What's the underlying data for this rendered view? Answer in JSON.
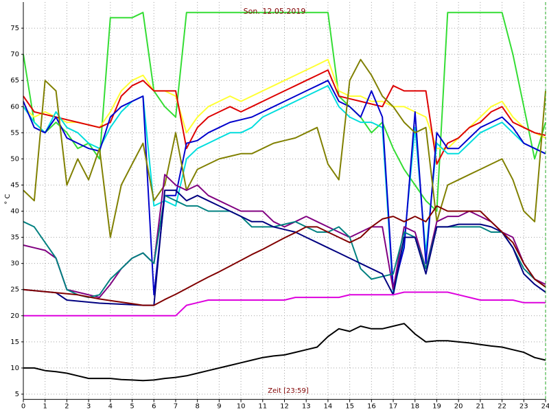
{
  "chart_data": {
    "type": "line",
    "title": "Son. 12.05.2019",
    "x_label": "Zeit [23:59]",
    "y_label": "° C",
    "xlim": [
      0,
      24
    ],
    "ylim": [
      4,
      80
    ],
    "xticks": [
      0,
      1,
      2,
      3,
      4,
      5,
      6,
      7,
      8,
      9,
      10,
      11,
      12,
      13,
      14,
      15,
      16,
      17,
      18,
      19,
      20,
      21,
      22,
      23,
      24
    ],
    "yticks": [
      5,
      10,
      15,
      20,
      25,
      30,
      35,
      40,
      45,
      50,
      55,
      60,
      65,
      70,
      75
    ],
    "grid": true,
    "x": [
      0,
      0.5,
      1,
      1.5,
      2,
      2.5,
      3,
      3.5,
      4,
      4.5,
      5,
      5.5,
      6,
      6.5,
      7,
      7.5,
      8,
      8.5,
      9,
      9.5,
      10,
      10.5,
      11,
      11.5,
      12,
      12.5,
      13,
      13.5,
      14,
      14.5,
      15,
      15.5,
      16,
      16.5,
      17,
      17.5,
      18,
      18.5,
      19,
      19.5,
      20,
      20.5,
      21,
      21.5,
      22,
      22.5,
      23,
      23.5,
      24
    ],
    "series": [
      {
        "color": "#33dd33",
        "values": [
          70,
          57,
          55,
          57,
          55,
          52,
          53,
          50,
          77,
          77,
          77,
          78,
          63,
          60,
          58,
          78,
          78,
          78,
          78,
          78,
          78,
          78,
          78,
          78,
          78,
          78,
          78,
          78,
          78,
          62,
          60,
          58,
          55,
          57,
          52,
          48,
          45,
          42,
          40,
          78,
          78,
          78,
          78,
          78,
          78,
          70,
          60,
          50,
          57
        ]
      },
      {
        "color": "#ffff33",
        "values": [
          60,
          58,
          59,
          58,
          57,
          57,
          56.5,
          56,
          59,
          63,
          65,
          66,
          63,
          63,
          62,
          55,
          58,
          60,
          61,
          62,
          61,
          62,
          63,
          64,
          65,
          66,
          67,
          68,
          69,
          63,
          62,
          62,
          61,
          61,
          60,
          60,
          59,
          58,
          52,
          52,
          54,
          56,
          58,
          60,
          61,
          58,
          56,
          55,
          54
        ]
      },
      {
        "color": "#dd0000",
        "values": [
          62,
          59,
          58.5,
          58,
          57.5,
          57,
          56.5,
          56,
          57,
          62,
          64,
          65,
          63,
          63,
          63,
          52,
          56,
          58,
          59,
          60,
          59,
          60,
          61,
          62,
          63,
          64,
          65,
          66,
          67,
          62,
          61.5,
          61,
          60.5,
          60,
          64,
          63,
          63,
          63,
          49,
          53,
          54,
          56,
          57,
          59,
          60,
          57,
          56,
          55,
          54.5
        ]
      },
      {
        "color": "#00dddd",
        "values": [
          60,
          57,
          55,
          59,
          56,
          55,
          53,
          52,
          56,
          59,
          61,
          62,
          41,
          42,
          41,
          50,
          52,
          53,
          54,
          55,
          55,
          56,
          58,
          59,
          60,
          61,
          62,
          63,
          64,
          60,
          58,
          57,
          57,
          56,
          24,
          34,
          56,
          32,
          53,
          51,
          51,
          53,
          55,
          56,
          57,
          55,
          53,
          52,
          51
        ]
      },
      {
        "color": "#0000cc",
        "values": [
          61,
          56,
          55,
          58,
          54,
          53,
          52,
          51.5,
          58,
          60,
          61,
          62,
          24,
          43,
          43,
          53,
          53.5,
          55,
          56,
          57,
          57.5,
          58,
          59,
          60,
          61,
          62,
          63,
          64,
          65,
          61,
          60,
          58,
          63,
          58,
          25,
          33,
          59,
          30,
          55,
          52,
          52,
          54,
          56,
          57,
          58,
          56,
          53,
          52,
          51
        ]
      },
      {
        "color": "#808000",
        "values": [
          44,
          42,
          65,
          63,
          45,
          50,
          46,
          52,
          35,
          45,
          49,
          53,
          42,
          45,
          55,
          44,
          48,
          49,
          50,
          50.5,
          51,
          51,
          52,
          53,
          53.5,
          54,
          55,
          56,
          49,
          46,
          65,
          69,
          66,
          62,
          60,
          57,
          55,
          56,
          38,
          45,
          46,
          47,
          48,
          49,
          50,
          46,
          40,
          38,
          63
        ]
      },
      {
        "color": "#800080",
        "values": [
          33.5,
          33,
          32.5,
          31,
          25,
          24.5,
          24,
          23.5,
          26,
          29,
          31,
          32,
          30,
          47,
          45,
          44,
          45,
          43,
          42,
          41,
          40,
          40,
          40,
          38,
          37,
          38,
          39,
          38,
          37,
          36,
          35,
          36,
          37,
          37,
          25,
          37,
          36,
          29,
          38,
          39,
          39,
          40,
          39,
          38,
          36,
          35,
          30,
          27,
          26
        ]
      },
      {
        "color": "#008080",
        "values": [
          38,
          37,
          34,
          31,
          25,
          24,
          23.5,
          24,
          27,
          29,
          31,
          32,
          30,
          43,
          42,
          41,
          41,
          40,
          40,
          40,
          39,
          37,
          37,
          37,
          37.5,
          38,
          37,
          36,
          36,
          37,
          35,
          29,
          27,
          27.5,
          28,
          36,
          35,
          29,
          37,
          37,
          37,
          37,
          37,
          36,
          36,
          33,
          29,
          27,
          25.5
        ]
      },
      {
        "color": "#000080",
        "values": [
          25,
          24.8,
          24.6,
          24.4,
          23,
          22.8,
          22.6,
          22.4,
          22.3,
          22.2,
          22.1,
          22,
          22,
          44,
          44,
          42,
          43,
          42,
          41,
          40,
          39,
          38,
          38,
          37,
          36.5,
          36,
          35,
          34,
          33,
          32,
          31,
          30,
          29,
          28,
          24,
          35,
          35,
          28,
          37,
          37,
          37.5,
          37.5,
          37.5,
          37,
          36,
          33,
          28,
          26,
          24.5
        ]
      },
      {
        "color": "#800000",
        "values": [
          25,
          24.8,
          24.6,
          24.4,
          24.2,
          24,
          23.6,
          23.2,
          22.9,
          22.6,
          22.3,
          22,
          22,
          23.1,
          24.1,
          25.2,
          26.3,
          27.4,
          28.4,
          29.5,
          30.6,
          31.7,
          32.7,
          33.8,
          34.9,
          35.9,
          37,
          37,
          36,
          35,
          34,
          35,
          37,
          38.5,
          39,
          38,
          39,
          38,
          41,
          40,
          40,
          40,
          40,
          38,
          36,
          34,
          30,
          27,
          25.5
        ]
      },
      {
        "color": "#dd00dd",
        "values": [
          20,
          20,
          20,
          20,
          20,
          20,
          20,
          20,
          20,
          20,
          20,
          20,
          20,
          20,
          20,
          22,
          22.5,
          23,
          23,
          23,
          23,
          23,
          23,
          23,
          23,
          23.5,
          23.5,
          23.5,
          23.5,
          23.5,
          24,
          24,
          24,
          24,
          24,
          24.5,
          24.5,
          24.5,
          24.5,
          24.5,
          24,
          23.5,
          23,
          23,
          23,
          23,
          22.5,
          22.5,
          22.5
        ]
      },
      {
        "color": "#000000",
        "values": [
          10,
          10,
          9.5,
          9.3,
          9,
          8.5,
          8,
          8,
          8,
          7.8,
          7.7,
          7.6,
          7.7,
          8,
          8.2,
          8.5,
          9,
          9.5,
          10,
          10.5,
          11,
          11.5,
          12,
          12.3,
          12.5,
          13,
          13.5,
          14,
          16,
          17.5,
          17,
          18,
          17.5,
          17.5,
          18,
          18.5,
          16.5,
          15,
          15.2,
          15.2,
          15,
          14.8,
          14.5,
          14.2,
          14,
          13.5,
          13,
          12,
          11.5
        ]
      }
    ]
  }
}
